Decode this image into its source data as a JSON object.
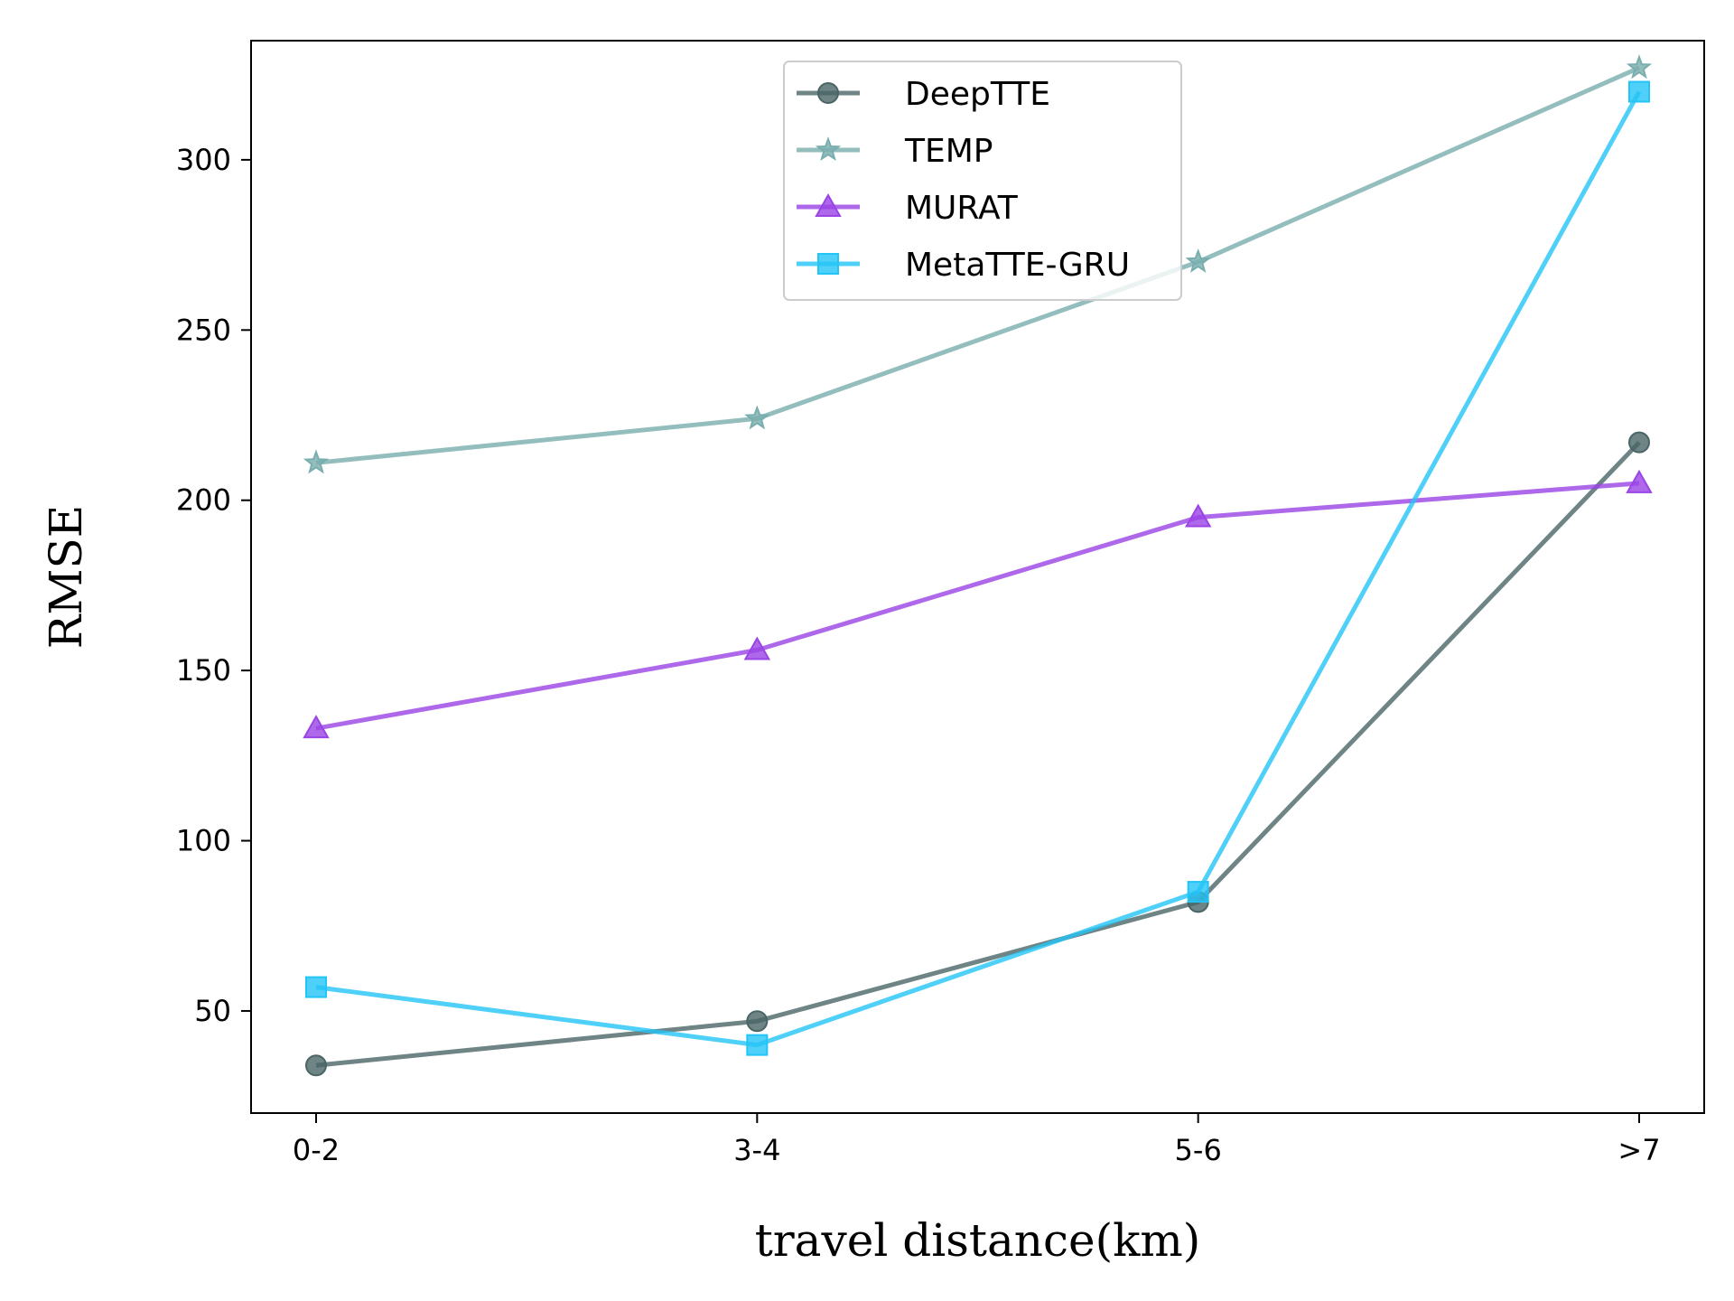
{
  "chart_data": {
    "type": "line",
    "title": "",
    "xlabel": "travel distance(km)",
    "ylabel": "RMSE",
    "categories": [
      "0-2",
      "3-4",
      "5-6",
      ">7"
    ],
    "ylim": [
      20,
      335
    ],
    "yticks": [
      50,
      100,
      150,
      200,
      250,
      300
    ],
    "grid": false,
    "legend_position": "top-center",
    "series": [
      {
        "name": "DeepTTE",
        "values": [
          34,
          47,
          82,
          217
        ],
        "color": "#4a6566",
        "marker": "circle"
      },
      {
        "name": "TEMP",
        "values": [
          211,
          224,
          270,
          327
        ],
        "color": "#79aeae",
        "marker": "star"
      },
      {
        "name": "MURAT",
        "values": [
          133,
          156,
          195,
          205
        ],
        "color": "#9a44e6",
        "marker": "triangle"
      },
      {
        "name": "MetaTTE-GRU",
        "values": [
          57,
          40,
          85,
          320
        ],
        "color": "#23c4f6",
        "marker": "square"
      }
    ]
  }
}
